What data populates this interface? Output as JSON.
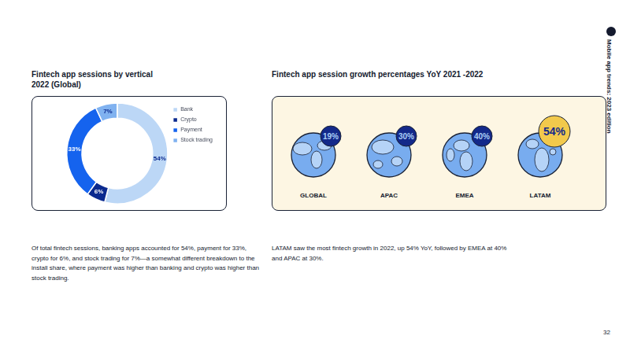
{
  "side_label": "Mobile app trends: 2023 edition",
  "page_number": "32",
  "chart_data": [
    {
      "type": "doughnut",
      "title": "Fintech app sessions by vertical",
      "subtitle": "2022 (Global)",
      "categories": [
        "Bank",
        "Crypto",
        "Payment",
        "Stock trading"
      ],
      "values": [
        54,
        6,
        33,
        7
      ],
      "value_labels": [
        "54%",
        "6%",
        "33%",
        "7%"
      ],
      "colors": [
        "#bcd7f6",
        "#0b2a8f",
        "#1563ee",
        "#80b2f0"
      ],
      "data_labels": true,
      "legend": "right",
      "caption": "Of total fintech sessions, banking apps accounted for 54%, payment for 33%, crypto for 6%, and stock trading for 7%—a somewhat different breakdown to the install share, where payment was higher than banking and crypto was higher than stock trading."
    },
    {
      "type": "pictogram",
      "title": "Fintech app session growth percentages YoY 2021 -2022",
      "categories": [
        "GLOBAL",
        "APAC",
        "EMEA",
        "LATAM"
      ],
      "values": [
        19,
        30,
        40,
        54
      ],
      "value_labels": [
        "19%",
        "30%",
        "40%",
        "54%"
      ],
      "data_labels": true,
      "caption": "LATAM saw the most fintech growth in 2022, up 54% YoY, followed by EMEA at 40% and APAC at 30%."
    }
  ]
}
